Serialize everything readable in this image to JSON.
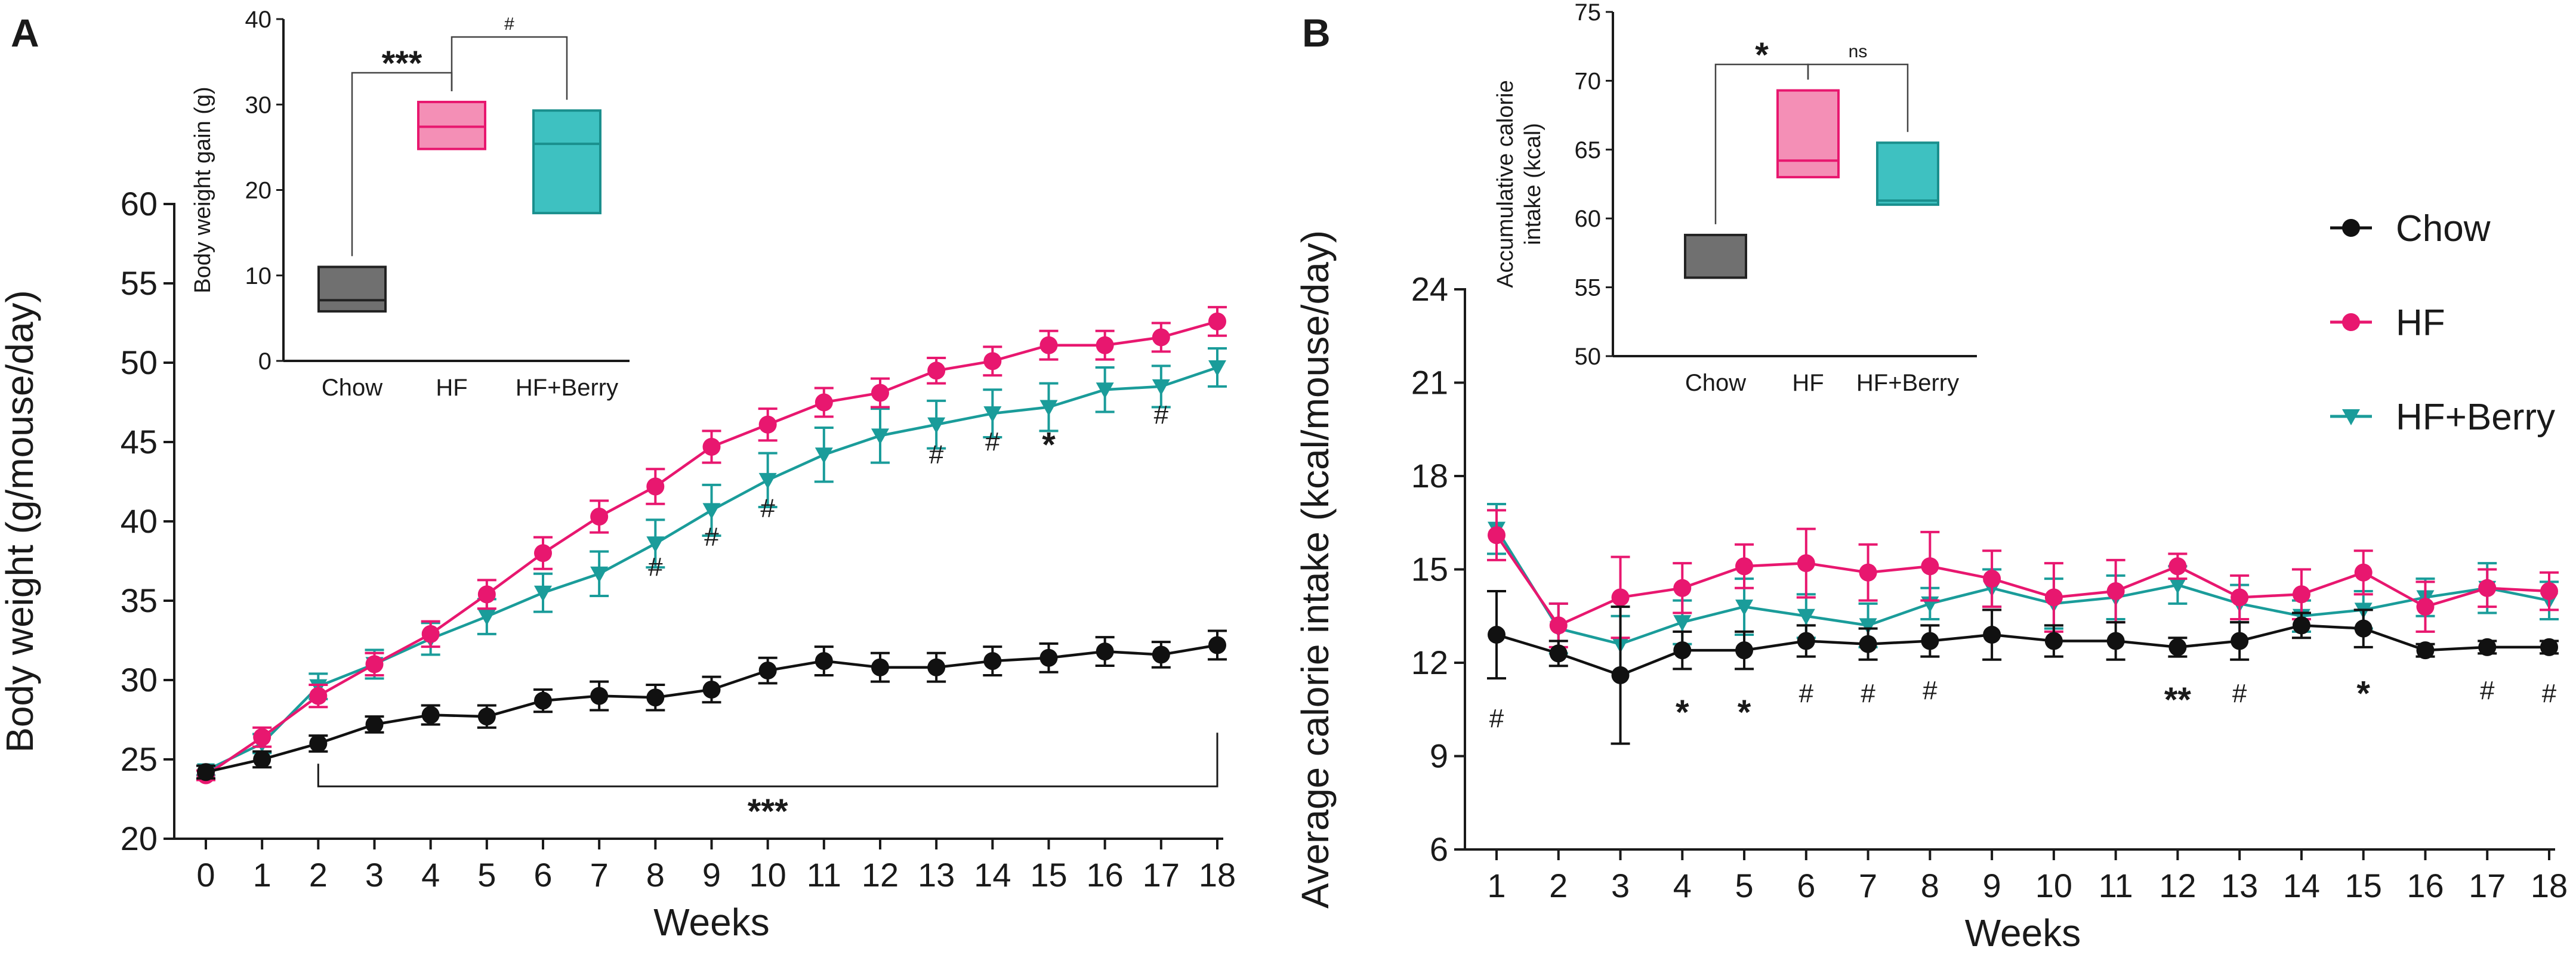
{
  "chart_data": [
    {
      "panel": "A",
      "type": "line",
      "xlabel": "Weeks",
      "ylabel": "Body weight (g/mouse/day)",
      "x": [
        0,
        1,
        2,
        3,
        4,
        5,
        6,
        7,
        8,
        9,
        10,
        11,
        12,
        13,
        14,
        15,
        16,
        17,
        18
      ],
      "xlim": [
        0,
        18
      ],
      "ylim": [
        20,
        60
      ],
      "yticks": [
        20,
        25,
        30,
        35,
        40,
        45,
        50,
        55,
        60
      ],
      "series": [
        {
          "name": "Chow",
          "color": "#111111",
          "marker": "circle",
          "values": [
            24.2,
            25.0,
            26.0,
            27.2,
            27.8,
            27.7,
            28.7,
            29.0,
            28.9,
            29.4,
            30.6,
            31.2,
            30.8,
            30.8,
            31.2,
            31.4,
            31.8,
            31.6,
            32.2
          ],
          "errors": [
            0.4,
            0.5,
            0.5,
            0.5,
            0.6,
            0.7,
            0.7,
            0.9,
            0.8,
            0.8,
            0.8,
            0.9,
            0.9,
            0.9,
            0.9,
            0.9,
            0.9,
            0.8,
            0.9
          ]
        },
        {
          "name": "HF",
          "color": "#e8176f",
          "marker": "circle",
          "values": [
            24.0,
            26.4,
            29.0,
            31.0,
            32.9,
            35.4,
            38.0,
            40.3,
            42.2,
            44.7,
            46.1,
            47.5,
            48.1,
            49.5,
            50.1,
            51.1,
            51.1,
            51.6,
            52.6
          ],
          "errors": [
            0.3,
            0.6,
            0.7,
            0.7,
            0.8,
            0.9,
            1.0,
            1.0,
            1.1,
            1.0,
            1.0,
            0.9,
            0.9,
            0.8,
            0.9,
            0.9,
            0.9,
            0.9,
            0.9
          ]
        },
        {
          "name": "HF+Berry",
          "color": "#1a9c9a",
          "marker": "triangle-down",
          "values": [
            24.3,
            26.0,
            29.6,
            31.0,
            32.6,
            34.0,
            35.5,
            36.7,
            38.6,
            40.7,
            42.6,
            44.2,
            45.4,
            46.1,
            46.8,
            47.2,
            48.3,
            48.5,
            49.7
          ],
          "errors": [
            0.3,
            0.6,
            0.8,
            0.9,
            1.0,
            1.1,
            1.2,
            1.4,
            1.5,
            1.6,
            1.7,
            1.7,
            1.7,
            1.5,
            1.5,
            1.5,
            1.4,
            1.3,
            1.2
          ]
        }
      ],
      "annotations": [
        {
          "text": "#",
          "x": 8,
          "y": 37.1
        },
        {
          "text": "#",
          "x": 9,
          "y": 39.0
        },
        {
          "text": "#",
          "x": 10,
          "y": 40.8
        },
        {
          "text": "#",
          "x": 13,
          "y": 44.2
        },
        {
          "text": "#",
          "x": 14,
          "y": 45.0
        },
        {
          "text": "*",
          "x": 15,
          "y": 45.2
        },
        {
          "text": "#",
          "x": 17,
          "y": 46.7
        }
      ],
      "bracket": {
        "x_from": 2,
        "x_to": 18,
        "y": 23.3,
        "label": "***"
      },
      "inset": {
        "type": "box",
        "ylabel": "Body weight gain (g)",
        "categories": [
          "Chow",
          "HF",
          "HF+Berry"
        ],
        "ylim": [
          0,
          40
        ],
        "yticks": [
          0,
          10,
          20,
          30,
          40
        ],
        "boxes": [
          {
            "name": "Chow",
            "min": 5.8,
            "median": 7.1,
            "max": 11.0,
            "color": "#707070"
          },
          {
            "name": "HF",
            "min": 24.8,
            "median": 27.4,
            "max": 30.3,
            "color": "#f48fb6"
          },
          {
            "name": "HF+Berry",
            "min": 17.3,
            "median": 25.4,
            "max": 29.3,
            "color": "#3ec1c1"
          }
        ],
        "comparisons": [
          {
            "from": 0,
            "to": 1,
            "label": "***"
          },
          {
            "from": 1,
            "to": 2,
            "label": "#"
          }
        ]
      }
    },
    {
      "panel": "B",
      "type": "line",
      "xlabel": "Weeks",
      "ylabel": "Average calorie intake (kcal/mouse/day)",
      "x": [
        1,
        2,
        3,
        4,
        5,
        6,
        7,
        8,
        9,
        10,
        11,
        12,
        13,
        14,
        15,
        16,
        17,
        18
      ],
      "xlim": [
        1,
        18
      ],
      "ylim": [
        6,
        24
      ],
      "yticks": [
        6,
        9,
        12,
        15,
        18,
        21,
        24
      ],
      "series": [
        {
          "name": "Chow",
          "color": "#111111",
          "marker": "circle",
          "values": [
            12.9,
            12.3,
            11.6,
            12.4,
            12.4,
            12.7,
            12.6,
            12.7,
            12.9,
            12.7,
            12.7,
            12.5,
            12.7,
            13.2,
            13.1,
            12.4,
            12.5,
            12.5
          ],
          "errors": [
            1.4,
            0.4,
            2.2,
            0.6,
            0.6,
            0.5,
            0.5,
            0.5,
            0.8,
            0.5,
            0.6,
            0.3,
            0.6,
            0.4,
            0.6,
            0.2,
            0.2,
            0.2
          ]
        },
        {
          "name": "HF",
          "color": "#e8176f",
          "marker": "circle",
          "values": [
            16.1,
            13.2,
            14.1,
            14.4,
            15.1,
            15.2,
            14.9,
            15.1,
            14.7,
            14.1,
            14.3,
            15.1,
            14.1,
            14.2,
            14.9,
            13.8,
            14.4,
            14.3
          ],
          "errors": [
            0.8,
            0.7,
            1.3,
            0.8,
            0.7,
            1.1,
            0.9,
            1.1,
            0.9,
            1.1,
            1.0,
            0.4,
            0.7,
            0.8,
            0.7,
            0.8,
            0.6,
            0.6
          ]
        },
        {
          "name": "HF+Berry",
          "color": "#1a9c9a",
          "marker": "triangle-down",
          "values": [
            16.3,
            13.1,
            12.6,
            13.3,
            13.8,
            13.5,
            13.2,
            13.9,
            14.4,
            13.9,
            14.1,
            14.5,
            13.9,
            13.5,
            13.7,
            14.1,
            14.4,
            14.0
          ],
          "errors": [
            0.8,
            0.8,
            0.9,
            0.7,
            0.9,
            0.7,
            0.7,
            0.5,
            0.6,
            0.8,
            0.7,
            0.6,
            0.6,
            0.5,
            0.6,
            0.6,
            0.8,
            0.6
          ]
        }
      ],
      "annotations": [
        {
          "text": "#",
          "x": 1,
          "y": 10.2
        },
        {
          "text": "*",
          "x": 4,
          "y": 10.6
        },
        {
          "text": "*",
          "x": 5,
          "y": 10.6
        },
        {
          "text": "#",
          "x": 6,
          "y": 11.0
        },
        {
          "text": "#",
          "x": 7,
          "y": 11.0
        },
        {
          "text": "#",
          "x": 8,
          "y": 11.1
        },
        {
          "text": "**",
          "x": 12,
          "y": 11.0
        },
        {
          "text": "#",
          "x": 13,
          "y": 11.0
        },
        {
          "text": "*",
          "x": 15,
          "y": 11.2
        },
        {
          "text": "#",
          "x": 17,
          "y": 11.1
        },
        {
          "text": "#",
          "x": 18,
          "y": 11.0
        }
      ],
      "inset": {
        "type": "box",
        "ylabel": "Accumulative calorie intake (kcal)",
        "ylabel_lines": [
          "Accumulative calorie",
          "intake (kcal)"
        ],
        "categories": [
          "Chow",
          "HF",
          "HF+Berry"
        ],
        "ylim": [
          50,
          75
        ],
        "yticks": [
          50,
          55,
          60,
          65,
          70,
          75
        ],
        "boxes": [
          {
            "name": "Chow",
            "min": 55.7,
            "median": 55.7,
            "max": 58.8,
            "color": "#707070"
          },
          {
            "name": "HF",
            "min": 63.0,
            "median": 64.2,
            "max": 69.3,
            "color": "#f48fb6"
          },
          {
            "name": "HF+Berry",
            "min": 61.0,
            "median": 61.3,
            "max": 65.5,
            "color": "#3ec1c1"
          }
        ],
        "comparisons": [
          {
            "from": 0,
            "to": 1,
            "label": "*"
          },
          {
            "from": 1,
            "to": 2,
            "label": "ns"
          }
        ]
      },
      "legend": {
        "position": "right",
        "entries": [
          "Chow",
          "HF",
          "HF+Berry"
        ]
      }
    }
  ]
}
